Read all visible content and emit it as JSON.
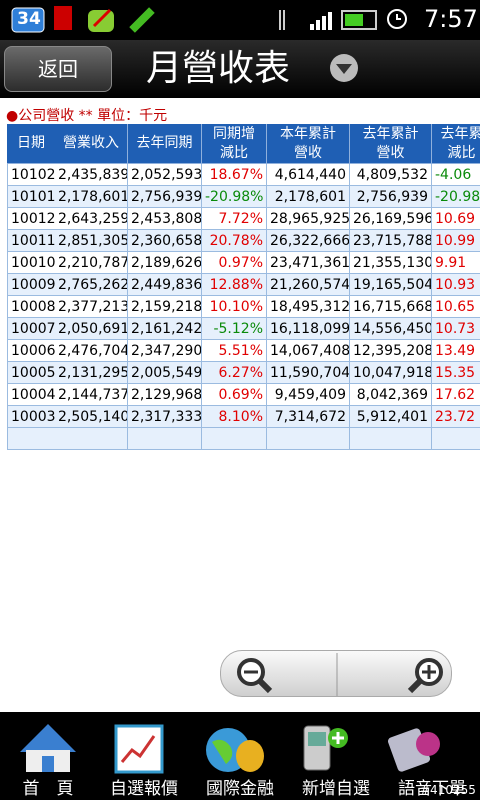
{
  "status_bar": {
    "badge": "34",
    "time": "7:57"
  },
  "header": {
    "back": "返回",
    "title": "月營收表"
  },
  "note": "●公司營收 ** 單位：千元",
  "table": {
    "header": [
      [
        "日期"
      ],
      [
        "營業收入"
      ],
      [
        "去年同期"
      ],
      [
        "同期增",
        "減比"
      ],
      [
        "本年累計",
        "營收"
      ],
      [
        "去年累計",
        "營收"
      ],
      [
        "去年累",
        "減比"
      ]
    ],
    "rows": [
      [
        "10102",
        "2,435,839",
        "2,052,593",
        "18.67%",
        "4,614,440",
        "4,809,532",
        "-4.06"
      ],
      [
        "10101",
        "2,178,601",
        "2,756,939",
        "-20.98%",
        "2,178,601",
        "2,756,939",
        "-20.98"
      ],
      [
        "10012",
        "2,643,259",
        "2,453,808",
        "7.72%",
        "28,965,925",
        "26,169,596",
        "10.69"
      ],
      [
        "10011",
        "2,851,305",
        "2,360,658",
        "20.78%",
        "26,322,666",
        "23,715,788",
        "10.99"
      ],
      [
        "10010",
        "2,210,787",
        "2,189,626",
        "0.97%",
        "23,471,361",
        "21,355,130",
        "9.91"
      ],
      [
        "10009",
        "2,765,262",
        "2,449,836",
        "12.88%",
        "21,260,574",
        "19,165,504",
        "10.93"
      ],
      [
        "10008",
        "2,377,213",
        "2,159,218",
        "10.10%",
        "18,495,312",
        "16,715,668",
        "10.65"
      ],
      [
        "10007",
        "2,050,691",
        "2,161,242",
        "-5.12%",
        "16,118,099",
        "14,556,450",
        "10.73"
      ],
      [
        "10006",
        "2,476,704",
        "2,347,290",
        "5.51%",
        "14,067,408",
        "12,395,208",
        "13.49"
      ],
      [
        "10005",
        "2,131,295",
        "2,005,549",
        "6.27%",
        "11,590,704",
        "10,047,918",
        "15.35"
      ],
      [
        "10004",
        "2,144,737",
        "2,129,968",
        "0.69%",
        "9,459,409",
        "8,042,369",
        "17.62"
      ],
      [
        "10003",
        "2,505,140",
        "2,317,333",
        "8.10%",
        "7,314,672",
        "5,912,401",
        "23.72"
      ]
    ]
  },
  "nav": [
    "首　頁",
    "自選報價",
    "國際金融",
    "新增自選",
    "語音下單"
  ],
  "watermark": "#410255"
}
